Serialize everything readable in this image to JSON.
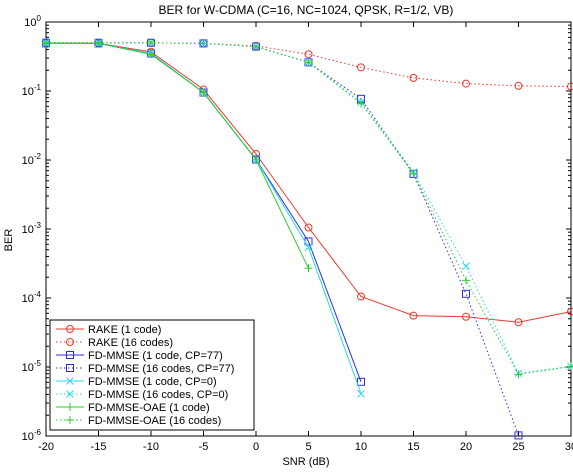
{
  "chart_data": {
    "type": "line",
    "title": "BER for W-CDMA (C=16, NC=1024, QPSK, R=1/2, VB)",
    "xlabel": "SNR (dB)",
    "ylabel": "BER",
    "xlim": [
      -20,
      30
    ],
    "ylim": [
      1e-06,
      1
    ],
    "yscale": "log",
    "grid": false,
    "legend_position": "bottom-left",
    "x_ticks": [
      "-20",
      "-15",
      "-10",
      "-5",
      "0",
      "5",
      "10",
      "15",
      "20",
      "25",
      "30"
    ],
    "y_ticks": [
      {
        "base": "10",
        "exp": "0"
      },
      {
        "base": "10",
        "exp": "-1"
      },
      {
        "base": "10",
        "exp": "-2"
      },
      {
        "base": "10",
        "exp": "-3"
      },
      {
        "base": "10",
        "exp": "-4"
      },
      {
        "base": "10",
        "exp": "-5"
      },
      {
        "base": "10",
        "exp": "-6"
      }
    ],
    "series": [
      {
        "name": "RAKE (1 code)",
        "color": "#e8392e",
        "line": "solid",
        "marker": "circle",
        "x": [
          -20,
          -15,
          -10,
          -5,
          0,
          5,
          10,
          15,
          20,
          25,
          30
        ],
        "y": [
          0.49,
          0.49,
          0.37,
          0.105,
          0.0122,
          0.00105,
          0.000105,
          5.55e-05,
          5.35e-05,
          4.45e-05,
          6.35e-05
        ]
      },
      {
        "name": "RAKE (16 codes)",
        "color": "#e8392e",
        "line": "dotted",
        "marker": "circle",
        "x": [
          -20,
          -15,
          -10,
          -5,
          0,
          5,
          10,
          15,
          20,
          25,
          30
        ],
        "y": [
          0.5,
          0.5,
          0.5,
          0.49,
          0.45,
          0.34,
          0.22,
          0.155,
          0.128,
          0.119,
          0.116
        ]
      },
      {
        "name": "FD-MMSE (1 code, CP=77)",
        "color": "#2e2ee0",
        "line": "solid",
        "marker": "square",
        "x": [
          -20,
          -15,
          -10,
          -5,
          0,
          5,
          10
        ],
        "y": [
          0.49,
          0.49,
          0.35,
          0.095,
          0.0102,
          0.00066,
          6.1e-06
        ]
      },
      {
        "name": "FD-MMSE (16 codes, CP=77)",
        "color": "#2e2ee0",
        "line": "dotted",
        "marker": "square",
        "x": [
          -20,
          -15,
          -10,
          -5,
          0,
          5,
          10,
          15,
          20,
          25
        ],
        "y": [
          0.5,
          0.5,
          0.5,
          0.49,
          0.44,
          0.26,
          0.077,
          0.0063,
          0.000115,
          1.02e-06
        ]
      },
      {
        "name": "FD-MMSE (1 code, CP=0)",
        "color": "#2ad8e8",
        "line": "solid",
        "marker": "x",
        "x": [
          -20,
          -15,
          -10,
          -5,
          0,
          5,
          10
        ],
        "y": [
          0.49,
          0.49,
          0.35,
          0.095,
          0.0102,
          0.00054,
          4.1e-06
        ]
      },
      {
        "name": "FD-MMSE (16 codes, CP=0)",
        "color": "#2ad8e8",
        "line": "dotted",
        "marker": "x",
        "x": [
          -20,
          -15,
          -10,
          -5,
          0,
          5,
          10,
          15,
          20,
          25,
          30
        ],
        "y": [
          0.5,
          0.5,
          0.5,
          0.49,
          0.44,
          0.26,
          0.069,
          0.0067,
          0.00029,
          8.1e-06,
          1.02e-05
        ]
      },
      {
        "name": "FD-MMSE-OAE (1 code)",
        "color": "#2ecc2e",
        "line": "solid",
        "marker": "plus",
        "x": [
          -20,
          -15,
          -10,
          -5,
          0,
          5
        ],
        "y": [
          0.49,
          0.49,
          0.34,
          0.095,
          0.0101,
          0.00027
        ]
      },
      {
        "name": "FD-MMSE-OAE (16 codes)",
        "color": "#2ecc2e",
        "line": "dotted",
        "marker": "plus",
        "x": [
          -20,
          -15,
          -10,
          -5,
          0,
          5,
          10,
          15,
          20,
          25,
          30
        ],
        "y": [
          0.5,
          0.5,
          0.5,
          0.49,
          0.44,
          0.26,
          0.066,
          0.0064,
          0.00018,
          7.8e-06,
          1.02e-05
        ]
      }
    ]
  }
}
